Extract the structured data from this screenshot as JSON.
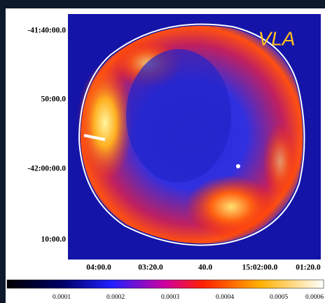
{
  "image": {
    "label": "VLA"
  },
  "y_axis": {
    "labels": [
      "-41:40:00.0",
      "50:00.0",
      "-42:00:00.0",
      "10:00.0"
    ]
  },
  "x_axis": {
    "labels": [
      "04:00.0",
      "03:20.0",
      "40.0",
      "15:02:00.0",
      "01:20.0"
    ]
  },
  "colorbar": {
    "labels": [
      "0.0001",
      "0.0002",
      "0.0003",
      "0.0004",
      "0.0005",
      "0.0006"
    ]
  }
}
